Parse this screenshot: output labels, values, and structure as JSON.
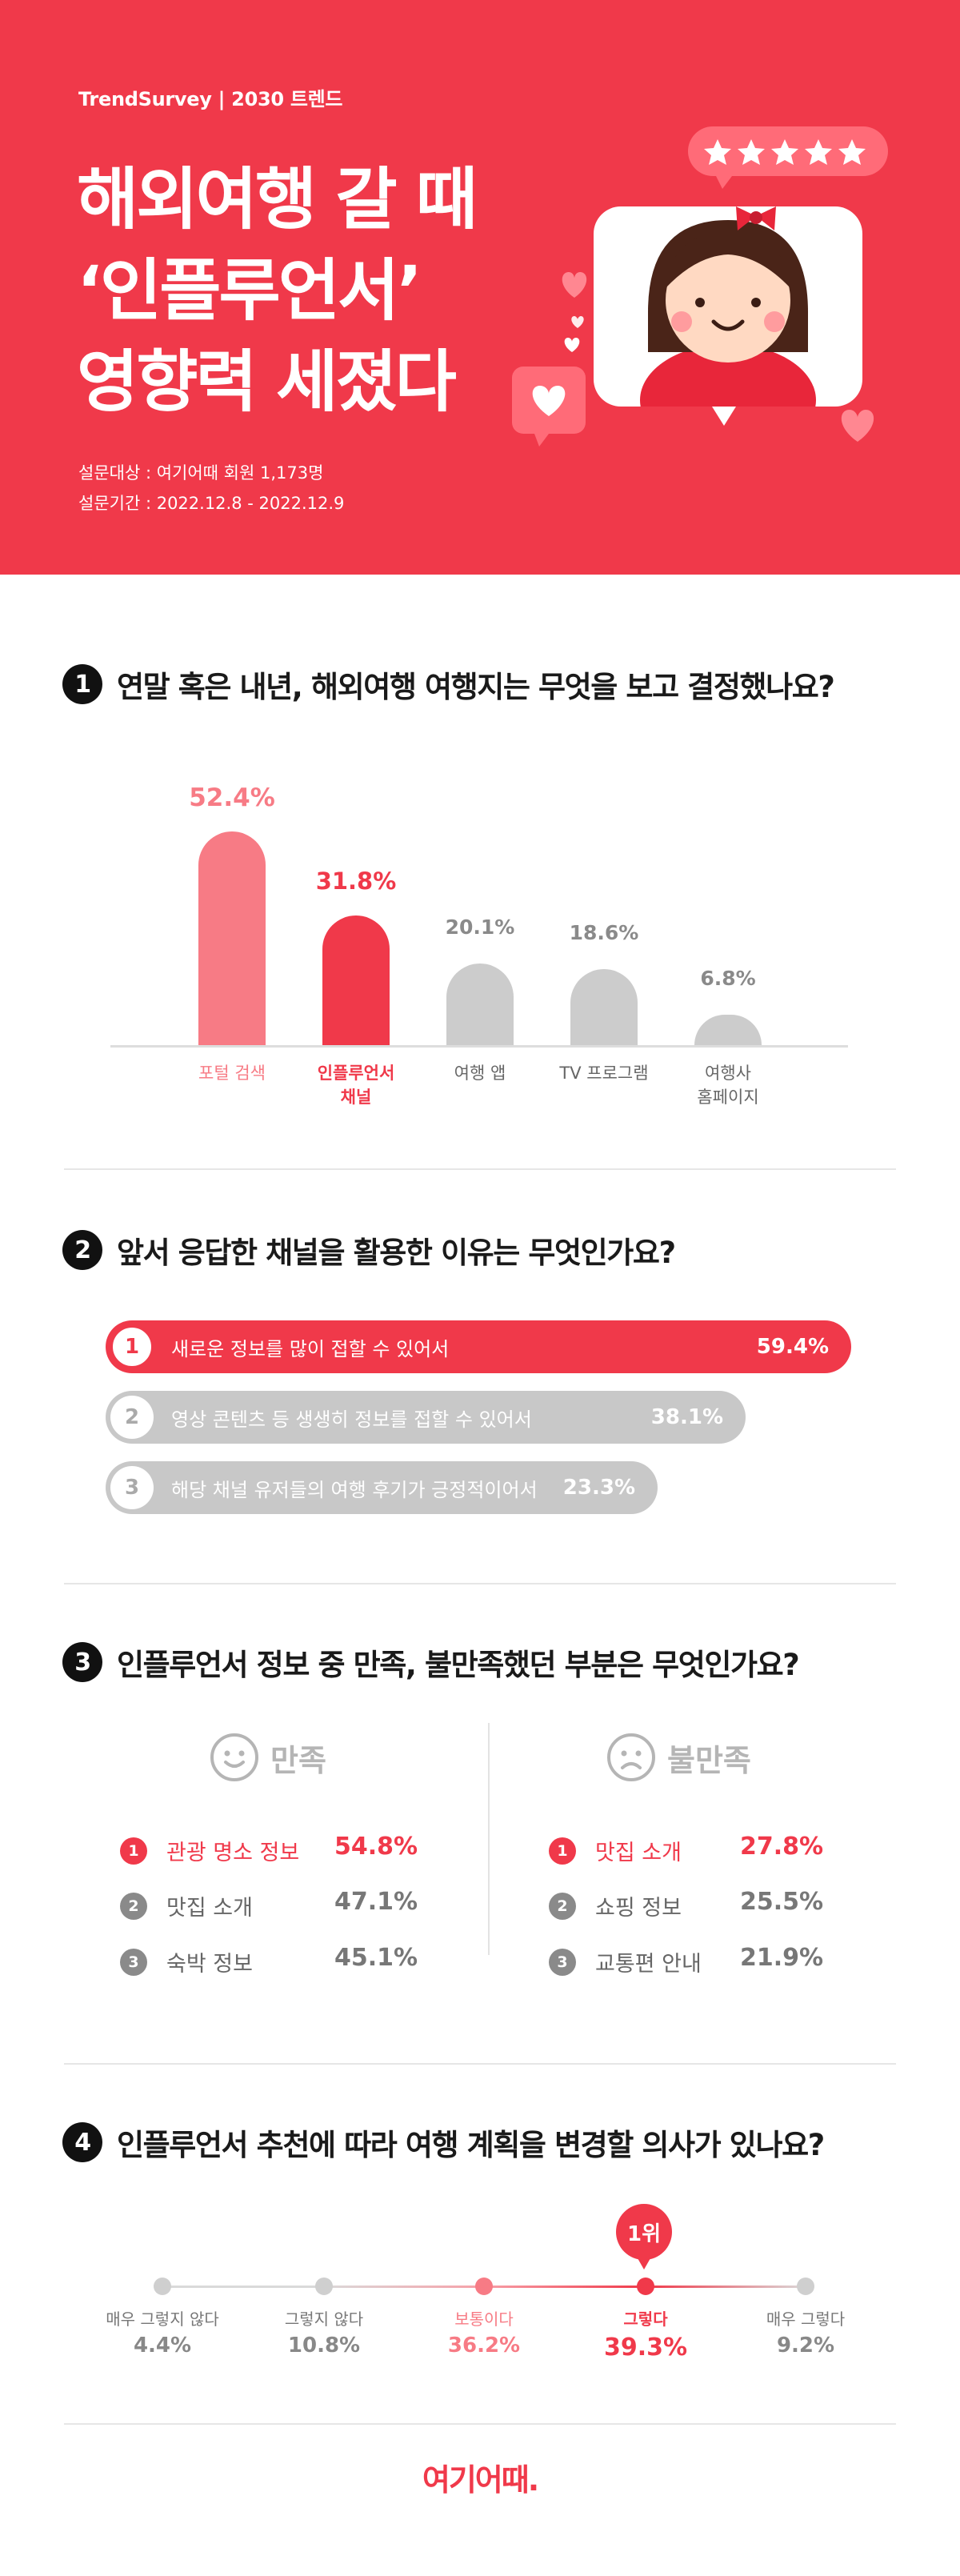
{
  "header": {
    "brand": "TrendSurvey | 2030 트렌드",
    "title_lines": [
      "해외여행 갈 때",
      "‘인플루언서’",
      "영향력 세졌다"
    ],
    "target": "설문대상 : 여기어때 회원 1,173명",
    "period": "설문기간 : 2022.12.8 - 2022.12.9"
  },
  "q1": {
    "number": "1",
    "question": "연말 혹은 내년, 해외여행 여행지는 무엇을 보고 결정했나요?",
    "chart_data": {
      "type": "bar",
      "categories": [
        "포털 검색",
        "인플루언서 채널",
        "여행 앱",
        "TV 프로그램",
        "여행사 홈페이지"
      ],
      "values": [
        52.4,
        31.8,
        20.1,
        18.6,
        6.8
      ],
      "value_labels": [
        "52.4%",
        "31.8%",
        "20.1%",
        "18.6%",
        "6.8%"
      ],
      "category_lines": [
        [
          "포털 검색"
        ],
        [
          "인플루언서",
          "채널"
        ],
        [
          "여행 앱"
        ],
        [
          "TV 프로그램"
        ],
        [
          "여행사",
          "홈페이지"
        ]
      ],
      "colors": [
        "#f77b85",
        "#f0394a",
        "#cccccc",
        "#cccccc",
        "#cccccc"
      ],
      "ylim": [
        0,
        60
      ],
      "unit": "%"
    }
  },
  "q2": {
    "number": "2",
    "question": "앞서 응답한 채널을 활용한 이유는 무엇인가요?",
    "items": [
      {
        "rank": "1",
        "label": "새로운 정보를 많이 접할 수 있어서",
        "pct": "59.4%",
        "value": 59.4
      },
      {
        "rank": "2",
        "label": "영상 콘텐츠 등 생생히 정보를 접할 수 있어서",
        "pct": "38.1%",
        "value": 38.1
      },
      {
        "rank": "3",
        "label": "해당 채널 유저들의 여행 후기가 긍정적이어서",
        "pct": "23.3%",
        "value": 23.3
      }
    ]
  },
  "q3": {
    "number": "3",
    "question": "인플루언서 정보 중 만족, 불만족했던 부분은 무엇인가요?",
    "satisfied": {
      "heading": "만족",
      "items": [
        {
          "rank": "1",
          "label": "관광 명소 정보",
          "pct": "54.8%"
        },
        {
          "rank": "2",
          "label": "맛집 소개",
          "pct": "47.1%"
        },
        {
          "rank": "3",
          "label": "숙박 정보",
          "pct": "45.1%"
        }
      ]
    },
    "dissatisfied": {
      "heading": "불만족",
      "items": [
        {
          "rank": "1",
          "label": "맛집 소개",
          "pct": "27.8%"
        },
        {
          "rank": "2",
          "label": "쇼핑 정보",
          "pct": "25.5%"
        },
        {
          "rank": "3",
          "label": "교통편 안내",
          "pct": "21.9%"
        }
      ]
    }
  },
  "q4": {
    "number": "4",
    "question": "인플루언서 추천에 따라 여행 계획을 변경할 의사가 있나요?",
    "badge": "1위",
    "scale": [
      {
        "label": "매우 그렇지 않다",
        "pct": "4.4%",
        "value": 4.4
      },
      {
        "label": "그렇지 않다",
        "pct": "10.8%",
        "value": 10.8
      },
      {
        "label": "보통이다",
        "pct": "36.2%",
        "value": 36.2
      },
      {
        "label": "그렇다",
        "pct": "39.3%",
        "value": 39.3
      },
      {
        "label": "매우 그렇다",
        "pct": "9.2%",
        "value": 9.2
      }
    ]
  },
  "footer": {
    "logo": "여기어때."
  },
  "colors": {
    "accent": "#f0394a",
    "accent_light": "#f77b85",
    "gray": "#cccccc"
  }
}
